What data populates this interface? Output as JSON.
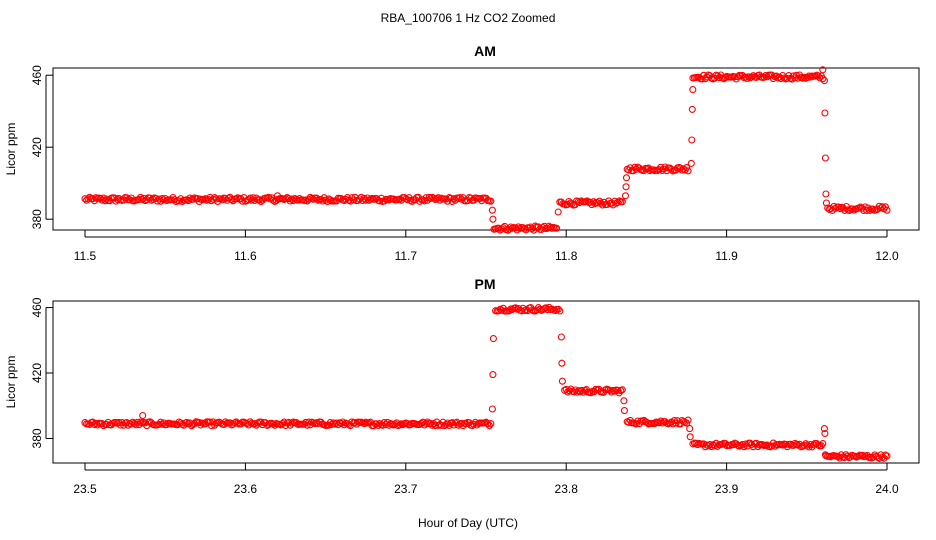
{
  "figure_title": "RBA_100706  1 Hz CO2 Zoomed",
  "x_axis_label": "Hour of Day (UTC)",
  "colors": {
    "points": "#ff0000",
    "axes": "#000000",
    "background": "#ffffff"
  },
  "chart_data": [
    {
      "type": "scatter",
      "title": "AM",
      "xlabel": "",
      "ylabel": "Licor ppm",
      "xlim": [
        11.5,
        12.0
      ],
      "ylim": [
        374,
        464
      ],
      "xticks": [
        11.5,
        11.6,
        11.7,
        11.8,
        11.9,
        12.0
      ],
      "xtick_labels": [
        "11.5",
        "11.6",
        "11.7",
        "11.8",
        "11.9",
        "12.0"
      ],
      "yticks": [
        380,
        420,
        460
      ],
      "ytick_labels": [
        "380",
        "420",
        "460"
      ],
      "grid": false,
      "marker": "open-circle",
      "segments": [
        {
          "x_start": 11.5,
          "x_end": 11.753,
          "y": 391
        },
        {
          "x_start": 11.755,
          "x_end": 11.794,
          "y": 375
        },
        {
          "x_start": 11.796,
          "x_end": 11.835,
          "y": 389
        },
        {
          "x_start": 11.838,
          "x_end": 11.876,
          "y": 408
        },
        {
          "x_start": 11.879,
          "x_end": 11.96,
          "y": 459
        },
        {
          "x_start": 11.963,
          "x_end": 12.0,
          "y": 386
        }
      ],
      "transitions": [
        {
          "x": 11.754,
          "y": [
            385,
            380
          ]
        },
        {
          "x": 11.795,
          "y": [
            384
          ]
        },
        {
          "x": 11.837,
          "y": [
            393,
            398,
            403
          ]
        },
        {
          "x": 11.878,
          "y": [
            411,
            424,
            441,
            452
          ]
        },
        {
          "x": 11.961,
          "y": [
            457,
            439,
            414,
            394,
            389
          ]
        }
      ],
      "outliers": [
        {
          "x": 11.62,
          "y": 393
        },
        {
          "x": 11.96,
          "y": 463
        }
      ]
    },
    {
      "type": "scatter",
      "title": "PM",
      "xlabel": "Hour of Day (UTC)",
      "ylabel": "Licor ppm",
      "xlim": [
        23.5,
        24.0
      ],
      "ylim": [
        365,
        464
      ],
      "xticks": [
        23.5,
        23.6,
        23.7,
        23.8,
        23.9,
        24.0
      ],
      "xtick_labels": [
        "23.5",
        "23.6",
        "23.7",
        "23.8",
        "23.9",
        "24.0"
      ],
      "yticks": [
        380,
        420,
        460
      ],
      "ytick_labels": [
        "380",
        "420",
        "460"
      ],
      "grid": false,
      "marker": "open-circle",
      "segments": [
        {
          "x_start": 23.5,
          "x_end": 23.753,
          "y": 389
        },
        {
          "x_start": 23.756,
          "x_end": 23.796,
          "y": 459
        },
        {
          "x_start": 23.799,
          "x_end": 23.835,
          "y": 409
        },
        {
          "x_start": 23.838,
          "x_end": 23.876,
          "y": 390
        },
        {
          "x_start": 23.879,
          "x_end": 23.96,
          "y": 376
        },
        {
          "x_start": 23.962,
          "x_end": 24.0,
          "y": 369
        }
      ],
      "transitions": [
        {
          "x": 23.754,
          "y": [
            398,
            419,
            441
          ]
        },
        {
          "x": 23.797,
          "y": [
            442,
            426,
            415
          ]
        },
        {
          "x": 23.836,
          "y": [
            403,
            397
          ]
        },
        {
          "x": 23.877,
          "y": [
            386,
            381
          ]
        },
        {
          "x": 23.961,
          "y": [
            386,
            383,
            370
          ]
        }
      ],
      "outliers": [
        {
          "x": 23.536,
          "y": 394
        }
      ]
    }
  ]
}
